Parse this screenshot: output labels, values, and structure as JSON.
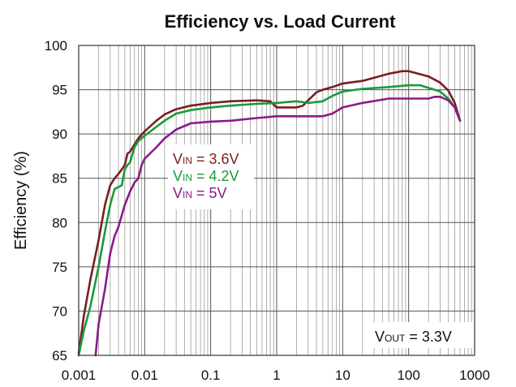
{
  "chart_data": {
    "type": "line",
    "title": "Efficiency vs. Load Current",
    "xlabel": "",
    "ylabel": "Efficiency (%)",
    "xscale": "log",
    "xlim": [
      0.001,
      1000
    ],
    "ylim": [
      65,
      100
    ],
    "x_ticks": [
      0.001,
      0.01,
      0.1,
      1,
      10,
      100,
      1000
    ],
    "x_tick_labels": [
      "0.001",
      "0.01",
      "0.1",
      "1",
      "10",
      "100",
      "1000"
    ],
    "y_ticks": [
      65,
      70,
      75,
      80,
      85,
      90,
      95,
      100
    ],
    "y_tick_labels": [
      "65",
      "70",
      "75",
      "80",
      "85",
      "90",
      "95",
      "100"
    ],
    "grid": true,
    "legend": [
      {
        "main": "V",
        "sub": "IN",
        "suffix": " = 3.6V",
        "color": "#7a1e1e"
      },
      {
        "main": "V",
        "sub": "IN",
        "suffix": " = 4.2V",
        "color": "#1a9a3a"
      },
      {
        "main": "V",
        "sub": "IN",
        "suffix": " = 5V",
        "color": "#8a1a8a"
      }
    ],
    "annotation": {
      "main": "V",
      "sub": "OUT",
      "suffix": " = 3.3V"
    },
    "series": [
      {
        "name": "VIN = 3.6V",
        "color": "#7a1e1e",
        "x": [
          0.001,
          0.0012,
          0.0015,
          0.002,
          0.0025,
          0.003,
          0.0035,
          0.004,
          0.0045,
          0.005,
          0.0055,
          0.006,
          0.007,
          0.008,
          0.01,
          0.015,
          0.02,
          0.03,
          0.05,
          0.1,
          0.2,
          0.5,
          0.8,
          1,
          2,
          2.5,
          3,
          4,
          5,
          7,
          10,
          20,
          50,
          80,
          100,
          200,
          300,
          400,
          500,
          600
        ],
        "values": [
          65.2,
          69.5,
          73.5,
          78,
          82,
          84.2,
          85,
          85.5,
          86,
          86.5,
          87.8,
          88,
          88.8,
          89.5,
          90.3,
          91.5,
          92.2,
          92.8,
          93.2,
          93.5,
          93.7,
          93.8,
          93.7,
          93,
          93,
          93.2,
          93.8,
          94.7,
          95,
          95.3,
          95.7,
          96,
          96.8,
          97.1,
          97.1,
          96.5,
          95.8,
          94.9,
          93.5,
          91.5
        ]
      },
      {
        "name": "VIN = 4.2V",
        "color": "#1a9a3a",
        "x": [
          0.001,
          0.0012,
          0.0015,
          0.002,
          0.0025,
          0.003,
          0.0035,
          0.004,
          0.0045,
          0.005,
          0.0055,
          0.006,
          0.007,
          0.008,
          0.01,
          0.015,
          0.02,
          0.03,
          0.05,
          0.1,
          0.2,
          0.5,
          1,
          2,
          2.5,
          3,
          5,
          7,
          10,
          20,
          50,
          100,
          150,
          200,
          300,
          400,
          500,
          600
        ],
        "values": [
          65,
          67.8,
          70.5,
          75,
          79,
          82,
          83.8,
          84,
          84.2,
          86,
          86.5,
          86.8,
          88.5,
          89.2,
          89.8,
          90.8,
          91.5,
          92.3,
          92.7,
          93,
          93.2,
          93.4,
          93.5,
          93.7,
          93.6,
          93.5,
          93.7,
          94.3,
          94.8,
          95.1,
          95.3,
          95.5,
          95.5,
          95.2,
          94.8,
          94,
          93,
          91.5
        ]
      },
      {
        "name": "VIN = 5V",
        "color": "#8a1a8a",
        "x": [
          0.0018,
          0.002,
          0.0025,
          0.003,
          0.0035,
          0.004,
          0.005,
          0.006,
          0.007,
          0.008,
          0.009,
          0.01,
          0.015,
          0.02,
          0.03,
          0.05,
          0.07,
          0.1,
          0.2,
          0.5,
          1,
          2,
          3,
          5,
          7,
          10,
          20,
          50,
          100,
          200,
          250,
          300,
          400,
          500,
          600
        ],
        "values": [
          65,
          68.5,
          72.5,
          76.5,
          78.5,
          79.5,
          82,
          83.5,
          84.5,
          85,
          86.5,
          87.2,
          88.5,
          89.5,
          90.5,
          91.2,
          91.3,
          91.4,
          91.5,
          91.8,
          92,
          92,
          92,
          92,
          92.3,
          93,
          93.5,
          94,
          94,
          94,
          94.2,
          94.2,
          93.8,
          93,
          91.5
        ]
      }
    ]
  }
}
